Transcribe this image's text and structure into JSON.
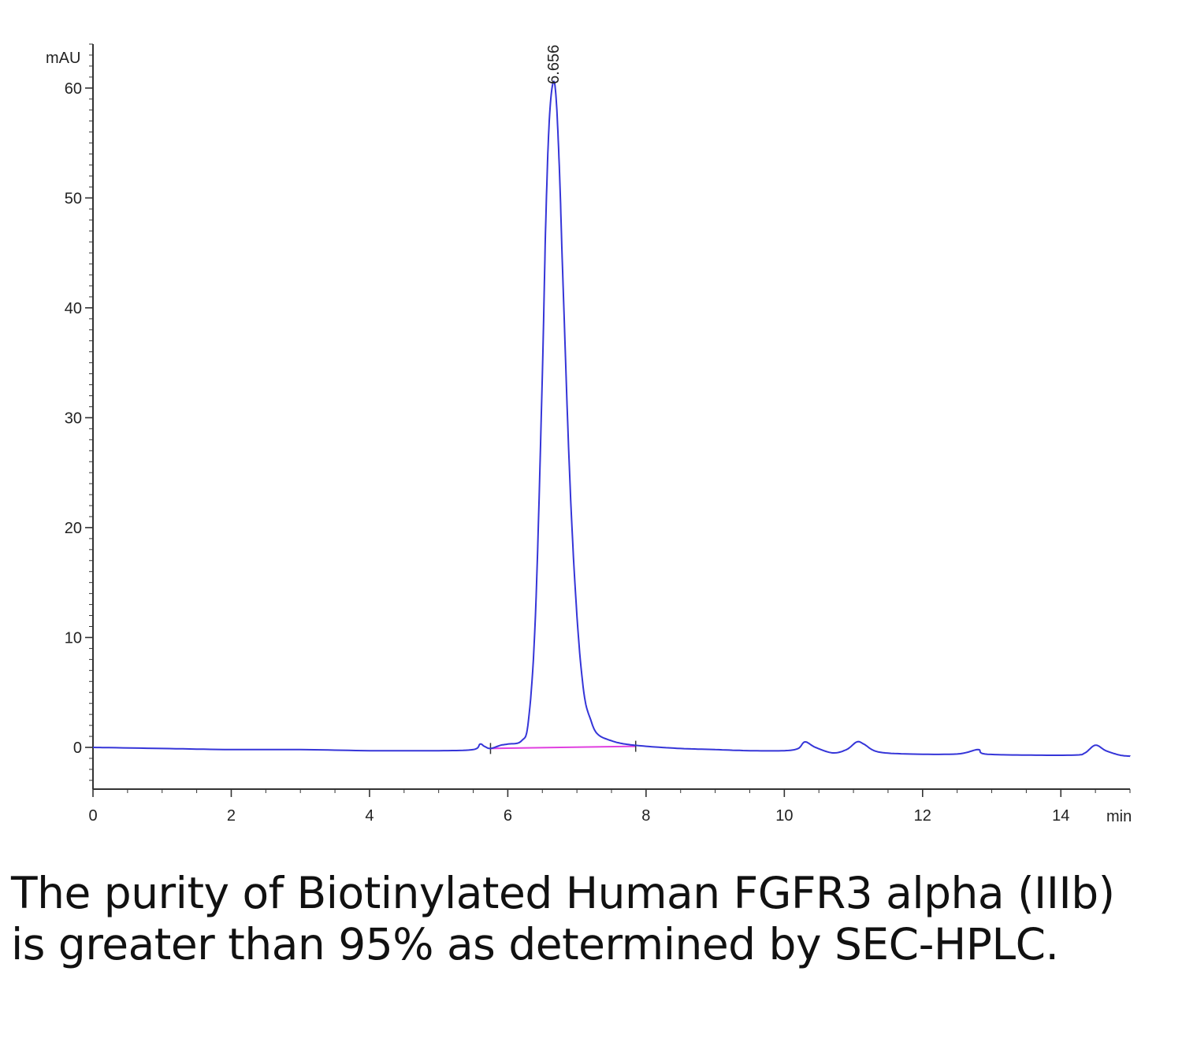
{
  "chart_data": {
    "type": "line",
    "title": "",
    "xlabel": "min",
    "ylabel": "mAU",
    "xlim": [
      0,
      15
    ],
    "ylim": [
      -3.8,
      64
    ],
    "x_ticks": [
      0,
      2,
      4,
      6,
      8,
      10,
      12,
      14
    ],
    "y_ticks": [
      0,
      10,
      20,
      30,
      40,
      50,
      60
    ],
    "grid": false,
    "colors": {
      "trace": "#3535d8",
      "baseline": "#e040e0",
      "axis": "#333333"
    },
    "series": [
      {
        "x": [
          0,
          1,
          2,
          3,
          4,
          5,
          5.5,
          5.6,
          5.66,
          5.75,
          5.9,
          6.0,
          6.2,
          6.3,
          6.4,
          6.5,
          6.55,
          6.6,
          6.656,
          6.7,
          6.75,
          6.8,
          6.9,
          7.0,
          7.1,
          7.2,
          7.3,
          7.5,
          7.7,
          8.0,
          8.5,
          9.0,
          9.5,
          10.0,
          10.2,
          10.3,
          10.45,
          10.7,
          10.9,
          11.05,
          11.15,
          11.35,
          11.8,
          12.5,
          12.8,
          12.9,
          13.5,
          14.2,
          14.35,
          14.5,
          14.65,
          14.85,
          15.0
        ],
        "y": [
          0.0,
          -0.1,
          -0.2,
          -0.2,
          -0.3,
          -0.3,
          -0.2,
          0.3,
          0.1,
          -0.1,
          0.2,
          0.3,
          0.6,
          2.5,
          12.0,
          34.0,
          48.0,
          57.0,
          60.5,
          59.0,
          52.0,
          42.0,
          24.0,
          12.0,
          5.0,
          2.5,
          1.2,
          0.6,
          0.3,
          0.1,
          -0.1,
          -0.2,
          -0.3,
          -0.3,
          -0.1,
          0.5,
          0.0,
          -0.5,
          -0.2,
          0.5,
          0.3,
          -0.4,
          -0.6,
          -0.6,
          -0.2,
          -0.6,
          -0.7,
          -0.7,
          -0.5,
          0.2,
          -0.3,
          -0.7,
          -0.8
        ]
      }
    ],
    "baseline": {
      "x": [
        5.75,
        7.85
      ],
      "y": [
        -0.1,
        0.1
      ]
    },
    "peak_label": {
      "x": 6.656,
      "y": 60.5,
      "text": "6.656"
    }
  },
  "caption": "The purity of Biotinylated Human FGFR3 alpha (IIIb) is greater than 95% as determined by SEC-HPLC."
}
